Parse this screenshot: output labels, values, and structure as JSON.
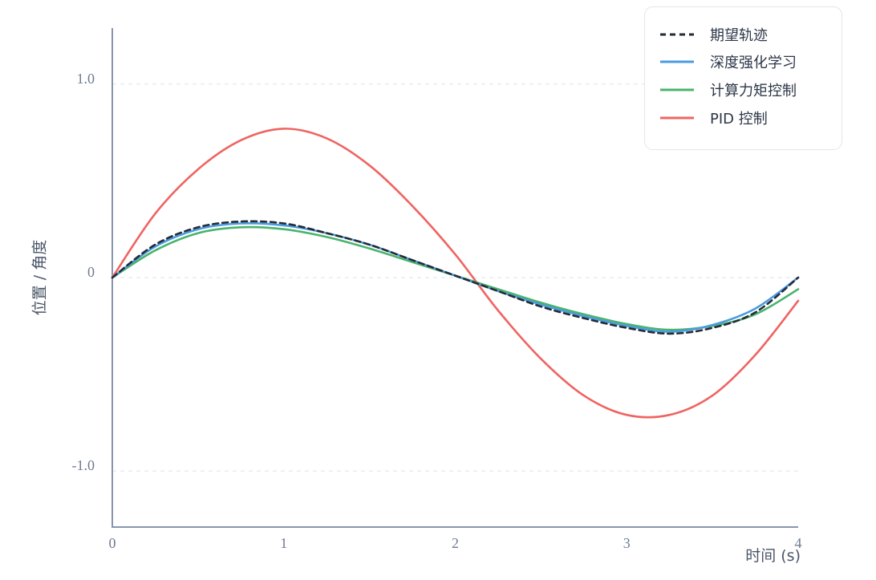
{
  "chart_data": {
    "type": "line",
    "xlabel": "时间 (s)",
    "ylabel": "位置 / 角度",
    "xlim": [
      0,
      4
    ],
    "ylim": [
      -1.29,
      1.29
    ],
    "xticks": [
      0,
      1,
      2,
      3,
      4
    ],
    "xtick_labels": [
      "0",
      "1",
      "2",
      "3",
      "4"
    ],
    "yticks": [
      1.0,
      0,
      -1.0
    ],
    "ytick_labels": [
      "1.0",
      "0",
      "-1.0"
    ],
    "grid": true,
    "grid_axis": "y",
    "grid_style": "dashed",
    "legend_position": "top-right",
    "x": [
      0,
      0.25,
      0.5,
      0.75,
      1.0,
      1.25,
      1.5,
      1.75,
      2.0,
      2.25,
      2.5,
      2.75,
      3.0,
      3.25,
      3.5,
      3.75,
      4.0
    ],
    "series": [
      {
        "name": "期望轨迹",
        "color": "#262b36",
        "line_style": "dashed",
        "values": [
          0.0,
          0.17,
          0.26,
          0.29,
          0.28,
          0.23,
          0.17,
          0.09,
          0.01,
          -0.07,
          -0.15,
          -0.21,
          -0.26,
          -0.29,
          -0.26,
          -0.18,
          0.0
        ]
      },
      {
        "name": "深度强化学习",
        "color": "#4a9be0",
        "line_style": "solid",
        "values": [
          0.0,
          0.16,
          0.25,
          0.28,
          0.27,
          0.23,
          0.17,
          0.09,
          0.01,
          -0.07,
          -0.14,
          -0.2,
          -0.25,
          -0.28,
          -0.245,
          -0.16,
          0.0
        ]
      },
      {
        "name": "计算力矩控制",
        "color": "#4bb36c",
        "line_style": "solid",
        "values": [
          0.0,
          0.14,
          0.23,
          0.26,
          0.25,
          0.21,
          0.15,
          0.08,
          0.01,
          -0.06,
          -0.13,
          -0.19,
          -0.24,
          -0.27,
          -0.25,
          -0.19,
          -0.06
        ]
      },
      {
        "name": "PID 控制",
        "color": "#ef6461",
        "line_style": "solid",
        "values": [
          0.0,
          0.33,
          0.56,
          0.71,
          0.77,
          0.72,
          0.58,
          0.37,
          0.12,
          -0.17,
          -0.42,
          -0.61,
          -0.71,
          -0.71,
          -0.61,
          -0.4,
          -0.12
        ]
      }
    ]
  }
}
